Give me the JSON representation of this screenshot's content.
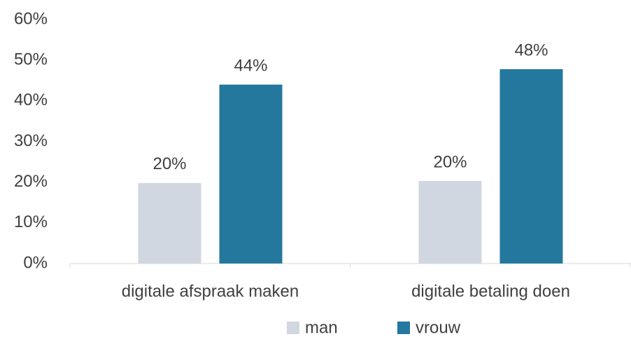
{
  "chart_data": {
    "type": "bar",
    "categories": [
      "digitale afspraak maken",
      "digitale betaling doen"
    ],
    "series": [
      {
        "name": "man",
        "color": "#d0d7e0",
        "values": [
          19.8,
          20.3
        ],
        "value_labels": [
          "20%",
          "20%"
        ]
      },
      {
        "name": "vrouw",
        "color": "#24789e",
        "values": [
          44.0,
          47.8
        ],
        "value_labels": [
          "44%",
          "48%"
        ]
      }
    ],
    "ylim": [
      0,
      60
    ],
    "yticks": [
      {
        "value": 0,
        "label": "0%"
      },
      {
        "value": 10,
        "label": "10%"
      },
      {
        "value": 20,
        "label": "20%"
      },
      {
        "value": 30,
        "label": "30%"
      },
      {
        "value": 40,
        "label": "40%"
      },
      {
        "value": 50,
        "label": "50%"
      },
      {
        "value": 60,
        "label": "60%"
      }
    ],
    "grid": false,
    "legend": "bottom"
  }
}
